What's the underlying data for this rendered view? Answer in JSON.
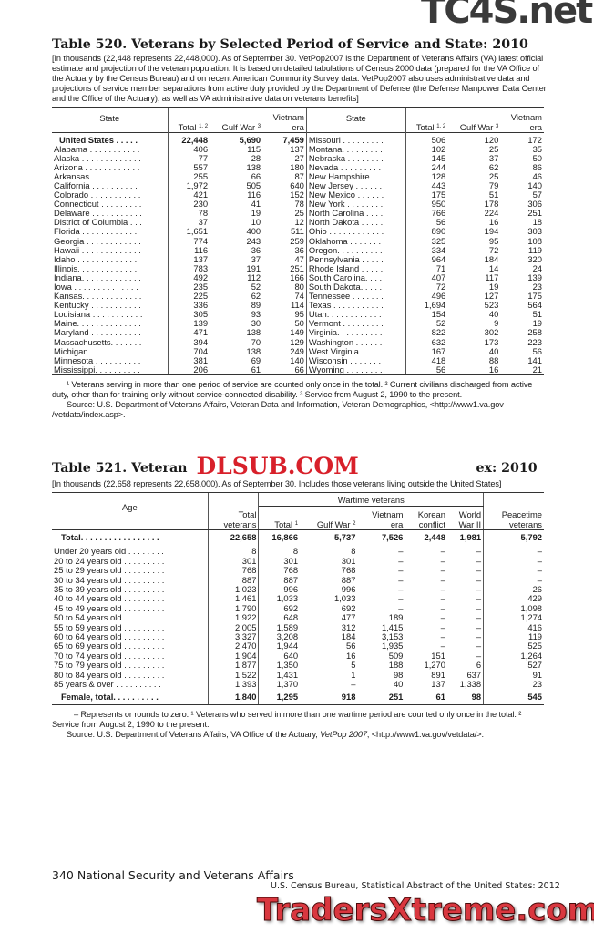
{
  "watermarks": {
    "top": "TC4S.net",
    "middle": "DLSUB.COM",
    "bottom": "TradersXtreme.com"
  },
  "t520": {
    "title": "Table 520. Veterans by Selected Period of Service and State: 2010",
    "intro": "[In thousands (22,448 represents 22,448,000). As of September 30. VetPop2007 is the Department of Veterans Affairs (VA) latest official estimate and projection of the veteran population. It is based on detailed tabulations of Census 2000 data (prepared for the VA Office of the Actuary by the Census Bureau) and on recent American Community Survey data. VetPop2007 also uses administrative data and projections of service member separations from active duty provided by the Department of Defense (the Defense Manpower Data Center and the Office of the Actuary), as well as VA administrative data on veterans benefits]",
    "headers": {
      "state": "State",
      "total": "Total",
      "total_sup": "1, 2",
      "gulf": "Gulf War",
      "gulf_sup": "3",
      "vietnam1": "Vietnam",
      "vietnam2": "era"
    },
    "left": [
      [
        "United States . . . . .",
        "22,448",
        "5,690",
        "7,459"
      ],
      [
        "Alabama . . . . . . . . . . .",
        "406",
        "115",
        "137"
      ],
      [
        "Alaska . . . . . . . . . . . . .",
        "77",
        "28",
        "27"
      ],
      [
        "Arizona . . . . . . . . . . . .",
        "557",
        "138",
        "180"
      ],
      [
        "Arkansas . . . . . . . . . . .",
        "255",
        "66",
        "87"
      ],
      [
        "California . . . . . . . . . .",
        "1,972",
        "505",
        "640"
      ],
      [
        "Colorado . . . . . . . . . . .",
        "421",
        "116",
        "152"
      ],
      [
        "Connecticut . . . . . . . . .",
        "230",
        "41",
        "78"
      ],
      [
        "Delaware . . . . . . . . . . .",
        "78",
        "19",
        "25"
      ],
      [
        "District of Columbia . . .",
        "37",
        "10",
        "12"
      ],
      [
        "Florida . . . . . . . . . . . .",
        "1,651",
        "400",
        "511"
      ],
      [
        "Georgia . . . . . . . . . . . .",
        "774",
        "243",
        "259"
      ],
      [
        "Hawaii . . . . . . . . . . . . .",
        "116",
        "36",
        "36"
      ],
      [
        "Idaho . . . . . . . . . . . . .",
        "137",
        "37",
        "47"
      ],
      [
        "Illinois. . . . . . . . . . . . .",
        "783",
        "191",
        "251"
      ],
      [
        "Indiana. . . . . . . . . . . . .",
        "492",
        "112",
        "166"
      ],
      [
        "Iowa . . . . . . . . . . . . . .",
        "235",
        "52",
        "80"
      ],
      [
        "Kansas. . . . . . . . . . . . .",
        "225",
        "62",
        "74"
      ],
      [
        "Kentucky . . . . . . . . . . .",
        "336",
        "89",
        "114"
      ],
      [
        "Louisiana . . . . . . . . . . .",
        "305",
        "93",
        "95"
      ],
      [
        "Maine. . . . . . . . . . . . . .",
        "139",
        "30",
        "50"
      ],
      [
        "Maryland . . . . . . . . . . .",
        "471",
        "138",
        "149"
      ],
      [
        "Massachusetts. . . . . . .",
        "394",
        "70",
        "129"
      ],
      [
        "Michigan . . . . . . . . . . .",
        "704",
        "138",
        "249"
      ],
      [
        "Minnesota . . . . . . . . . .",
        "381",
        "69",
        "140"
      ],
      [
        "Mississippi. . . . . . . . . .",
        "206",
        "61",
        "66"
      ]
    ],
    "right": [
      [
        "Missouri . . . . . . . . .",
        "506",
        "120",
        "172"
      ],
      [
        "Montana. . . . . . . . .",
        "102",
        "25",
        "35"
      ],
      [
        "Nebraska . . . . . . . .",
        "145",
        "37",
        "50"
      ],
      [
        "Nevada . . . . . . . . .",
        "244",
        "62",
        "86"
      ],
      [
        "New Hampshire . . .",
        "128",
        "25",
        "46"
      ],
      [
        "New Jersey . . . . . .",
        "443",
        "79",
        "140"
      ],
      [
        "New Mexico . . . . . .",
        "175",
        "51",
        "57"
      ],
      [
        "New York . . . . . . . .",
        "950",
        "178",
        "306"
      ],
      [
        "North Carolina . . . .",
        "766",
        "224",
        "251"
      ],
      [
        "North Dakota . . . . .",
        "56",
        "16",
        "18"
      ],
      [
        "Ohio . . . . . . . . . . . .",
        "890",
        "194",
        "303"
      ],
      [
        "Oklahoma . . . . . . .",
        "325",
        "95",
        "108"
      ],
      [
        "Oregon. . . . . . . . . .",
        "334",
        "72",
        "119"
      ],
      [
        "Pennsylvania . . . . .",
        "964",
        "184",
        "320"
      ],
      [
        "Rhode Island . . . . .",
        "71",
        "14",
        "24"
      ],
      [
        "South Carolina. . . .",
        "407",
        "117",
        "139"
      ],
      [
        "South Dakota. . . . .",
        "72",
        "19",
        "23"
      ],
      [
        "Tennessee . . . . . . .",
        "496",
        "127",
        "175"
      ],
      [
        "Texas . . . . . . . . . . .",
        "1,694",
        "523",
        "564"
      ],
      [
        "Utah. . . . . . . . . . . .",
        "154",
        "40",
        "51"
      ],
      [
        "Vermont . . . . . . . . .",
        "52",
        "9",
        "19"
      ],
      [
        "Virginia. . . . . . . . . .",
        "822",
        "302",
        "258"
      ],
      [
        "Washington . . . . . .",
        "632",
        "173",
        "223"
      ],
      [
        "West Virginia . . . . .",
        "167",
        "40",
        "56"
      ],
      [
        "Wisconsin . . . . . . .",
        "418",
        "88",
        "141"
      ],
      [
        "Wyoming . . . . . . . .",
        "56",
        "16",
        "21"
      ]
    ],
    "footnote": "¹ Veterans serving in more than one period of service are counted only once in the total. ² Current civilians discharged from active duty, other than for training only without service-connected disability. ³ Service from August 2, 1990 to the present.",
    "source": "Source: U.S. Department of Veterans Affairs, Veteran Data and Information, Veteran Demographics, <http://www1.va.gov /vetdata/index.asp>."
  },
  "t521": {
    "title_start": "Table 521. Veteran",
    "title_end": "ex: 2010",
    "intro": "[In thousands (22,658 represents 22,658,000). As of September 30. Includes those veterans living outside the United States]",
    "headers": {
      "age": "Age",
      "total_veterans": [
        "Total",
        "veterans"
      ],
      "wartime": "Wartime veterans",
      "total": "Total",
      "total_sup": "1",
      "gulf": "Gulf War",
      "gulf_sup": "2",
      "vietnam": [
        "Vietnam",
        "era"
      ],
      "korean": [
        "Korean",
        "conflict"
      ],
      "ww2": [
        "World",
        "War II"
      ],
      "peacetime": [
        "Peacetime",
        "veterans"
      ]
    },
    "total_row": [
      "Total. . . . . . . . . . . . . . . . .",
      "22,658",
      "16,866",
      "5,737",
      "7,526",
      "2,448",
      "1,981",
      "5,792"
    ],
    "rows": [
      [
        "Under 20 years old . . . . . . . .",
        "8",
        "8",
        "8",
        "–",
        "–",
        "–",
        "–"
      ],
      [
        "20 to 24 years old . . . . . . . . .",
        "301",
        "301",
        "301",
        "–",
        "–",
        "–",
        "–"
      ],
      [
        "25 to 29 years old . . . . . . . . .",
        "768",
        "768",
        "768",
        "–",
        "–",
        "–",
        "–"
      ],
      [
        "30 to 34 years old . . . . . . . . .",
        "887",
        "887",
        "887",
        "–",
        "–",
        "–",
        "–"
      ],
      [
        "35 to 39 years old . . . . . . . . .",
        "1,023",
        "996",
        "996",
        "–",
        "–",
        "–",
        "26"
      ],
      [
        "40 to 44 years old . . . . . . . . .",
        "1,461",
        "1,033",
        "1,033",
        "–",
        "–",
        "–",
        "429"
      ],
      [
        "45 to 49 years old . . . . . . . . .",
        "1,790",
        "692",
        "692",
        "–",
        "–",
        "–",
        "1,098"
      ],
      [
        "50 to 54 years old . . . . . . . . .",
        "1,922",
        "648",
        "477",
        "189",
        "–",
        "–",
        "1,274"
      ],
      [
        "55 to 59 years old . . . . . . . . .",
        "2,005",
        "1,589",
        "312",
        "1,415",
        "–",
        "–",
        "416"
      ],
      [
        "60 to 64 years old . . . . . . . . .",
        "3,327",
        "3,208",
        "184",
        "3,153",
        "–",
        "–",
        "119"
      ],
      [
        "65 to 69 years old . . . . . . . . .",
        "2,470",
        "1,944",
        "56",
        "1,935",
        "–",
        "–",
        "525"
      ],
      [
        "70 to 74 years old . . . . . . . . .",
        "1,904",
        "640",
        "16",
        "509",
        "151",
        "–",
        "1,264"
      ],
      [
        "75 to 79 years old . . . . . . . . .",
        "1,877",
        "1,350",
        "5",
        "188",
        "1,270",
        "6",
        "527"
      ],
      [
        "80 to 84 years old . . . . . . . . .",
        "1,522",
        "1,431",
        "1",
        "98",
        "891",
        "637",
        "91"
      ],
      [
        "85 years & over . . . . . . . . . .",
        "1,393",
        "1,370",
        "–",
        "40",
        "137",
        "1,338",
        "23"
      ]
    ],
    "female_row": [
      "Female, total. . . . . . . . . .",
      "1,840",
      "1,295",
      "918",
      "251",
      "61",
      "98",
      "545"
    ],
    "footnote": "– Represents or rounds to zero. ¹ Veterans who served in more than one wartime period are counted only once in the total. ² Service from August 2, 1990 to the present.",
    "source_a": "Source: U.S. Department of Veterans Affairs, VA Office of the Actuary, ",
    "source_italic": "VetPop 2007",
    "source_b": ", <http://www1.va.gov/vetdata/>."
  },
  "footer": {
    "page_left": "340  National Security and Veterans Affairs",
    "page_right": "U.S. Census Bureau, Statistical Abstract of the United States: 2012"
  }
}
